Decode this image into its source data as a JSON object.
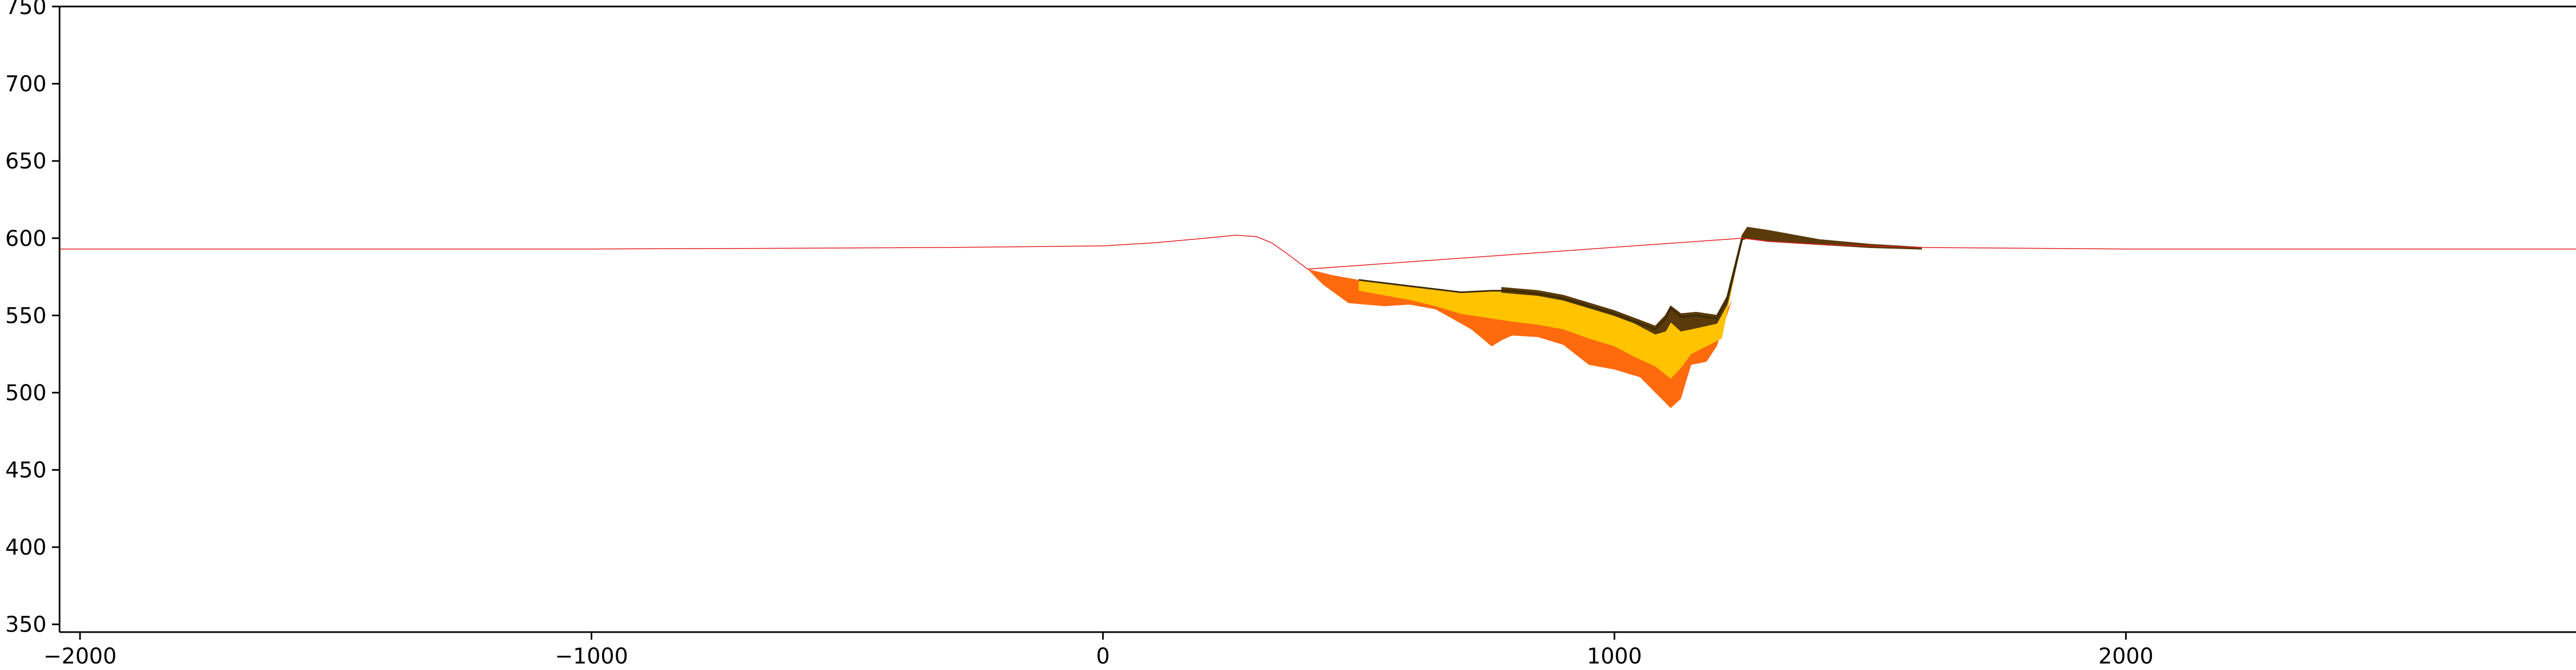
{
  "chart_data": {
    "type": "area",
    "title": "",
    "xlabel": "",
    "ylabel": "",
    "xlim": [
      -2040,
      2880
    ],
    "ylim": [
      345,
      750
    ],
    "xticks": [
      -2000,
      -1000,
      0,
      1000,
      2000
    ],
    "xtick_labels": [
      "−2000",
      "−1000",
      "0",
      "1000",
      "2000"
    ],
    "yticks": [
      350,
      400,
      450,
      500,
      550,
      600,
      650,
      700,
      750
    ],
    "ytick_labels": [
      "350",
      "400",
      "450",
      "500",
      "550",
      "600",
      "650",
      "700",
      "750"
    ],
    "grid": false,
    "legend": "none",
    "colors": {
      "axis": "#000000",
      "baseline": "#e31a1c",
      "orange": "#ff6a0d",
      "yellow": "#ffc300",
      "dark": "#5a3a0a"
    },
    "series": [
      {
        "role": "baseline-line",
        "x": [
          -2040,
          -1500,
          -1000,
          -600,
          -300,
          0,
          100,
          200,
          260,
          300,
          330,
          360,
          400,
          1250,
          1300,
          1400,
          1600,
          2000,
          2880
        ],
        "y": [
          593,
          593,
          593,
          593.5,
          594,
          595,
          597,
          600,
          602,
          601,
          597,
          590,
          580,
          600,
          598,
          596,
          594,
          593,
          593
        ]
      },
      {
        "role": "lower-orange-fill",
        "top": {
          "x": [
            400,
            450,
            500,
            550,
            600,
            650,
            700,
            760,
            800,
            850,
            900,
            950,
            1000,
            1040,
            1080,
            1110,
            1140,
            1200,
            1230,
            1250
          ],
          "y": [
            580,
            576,
            573,
            571,
            569,
            567,
            565,
            565,
            566,
            563,
            559,
            555,
            550,
            545,
            540,
            535,
            533,
            540,
            560,
            600
          ]
        },
        "bottom": {
          "x": [
            400,
            430,
            480,
            550,
            600,
            650,
            720,
            760,
            780,
            800,
            850,
            900,
            950,
            1000,
            1050,
            1080,
            1110,
            1130,
            1150,
            1180,
            1200,
            1230,
            1250
          ],
          "y": [
            580,
            570,
            558,
            556,
            557,
            554,
            541,
            530,
            534,
            537,
            536,
            531,
            518,
            515,
            510,
            500,
            490,
            496,
            518,
            520,
            530,
            560,
            600
          ]
        }
      },
      {
        "role": "upper-yellow-fill",
        "top": {
          "x": [
            500,
            550,
            600,
            650,
            700,
            760,
            800,
            850,
            900,
            950,
            1000,
            1040,
            1080,
            1100,
            1110,
            1130,
            1160,
            1200,
            1220,
            1250
          ],
          "y": [
            573,
            571,
            569,
            567,
            565,
            566,
            566,
            564,
            561,
            556,
            551,
            546,
            541,
            548,
            555,
            549,
            550,
            548,
            560,
            600
          ]
        },
        "bottom": {
          "x": [
            500,
            550,
            600,
            650,
            700,
            760,
            800,
            850,
            900,
            950,
            1000,
            1040,
            1080,
            1110,
            1130,
            1150,
            1180,
            1210,
            1250
          ],
          "y": [
            566,
            563,
            560,
            556,
            551,
            548,
            546,
            544,
            541,
            535,
            530,
            523,
            517,
            509,
            516,
            525,
            530,
            535,
            600
          ]
        }
      },
      {
        "role": "dark-cap",
        "top": {
          "x": [
            780,
            850,
            900,
            950,
            1000,
            1040,
            1080,
            1100,
            1110,
            1130,
            1160,
            1200,
            1220,
            1250,
            1260,
            1300,
            1400,
            1500,
            1600
          ],
          "y": [
            568,
            566,
            563,
            558,
            553,
            548,
            543,
            550,
            556,
            551,
            552,
            550,
            562,
            602,
            607,
            605,
            599,
            596,
            594
          ]
        },
        "bottom": {
          "x": [
            780,
            850,
            900,
            950,
            1000,
            1040,
            1080,
            1100,
            1110,
            1130,
            1160,
            1200,
            1220,
            1250,
            1260,
            1300,
            1400,
            1500,
            1600
          ],
          "y": [
            565,
            563,
            560,
            555,
            550,
            545,
            538,
            540,
            546,
            540,
            542,
            545,
            557,
            599,
            600,
            598,
            596,
            594,
            593
          ]
        }
      }
    ]
  }
}
